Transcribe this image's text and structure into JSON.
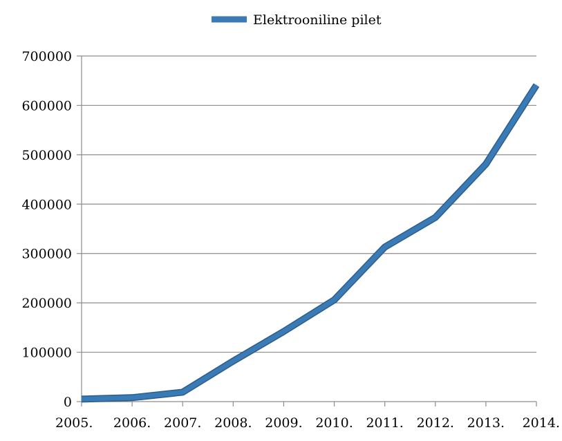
{
  "chart_data": {
    "type": "line",
    "title": "",
    "xlabel": "",
    "ylabel": "",
    "categories": [
      "2005.",
      "2006.",
      "2007.",
      "2008.",
      "2009.",
      "2010.",
      "2011.",
      "2012.",
      "2013.",
      "2014."
    ],
    "series": [
      {
        "name": "Elektrooniline pilet",
        "color": "#3a7ab5",
        "values": [
          5000,
          8000,
          19000,
          82000,
          142000,
          206000,
          313000,
          373000,
          481000,
          641000
        ]
      }
    ],
    "ylim": [
      0,
      700000
    ],
    "yticks": [
      0,
      100000,
      200000,
      300000,
      400000,
      500000,
      600000,
      700000
    ],
    "ytick_labels": [
      "0",
      "100000",
      "200000",
      "300000",
      "400000",
      "500000",
      "600000",
      "700000"
    ],
    "grid": "horizontal",
    "legend_position": "top-center"
  },
  "colors": {
    "grid": "#8c8c8c",
    "axis": "#8c8c8c",
    "series": "#3a7ab5",
    "series_edge": "#2b5d8c"
  }
}
